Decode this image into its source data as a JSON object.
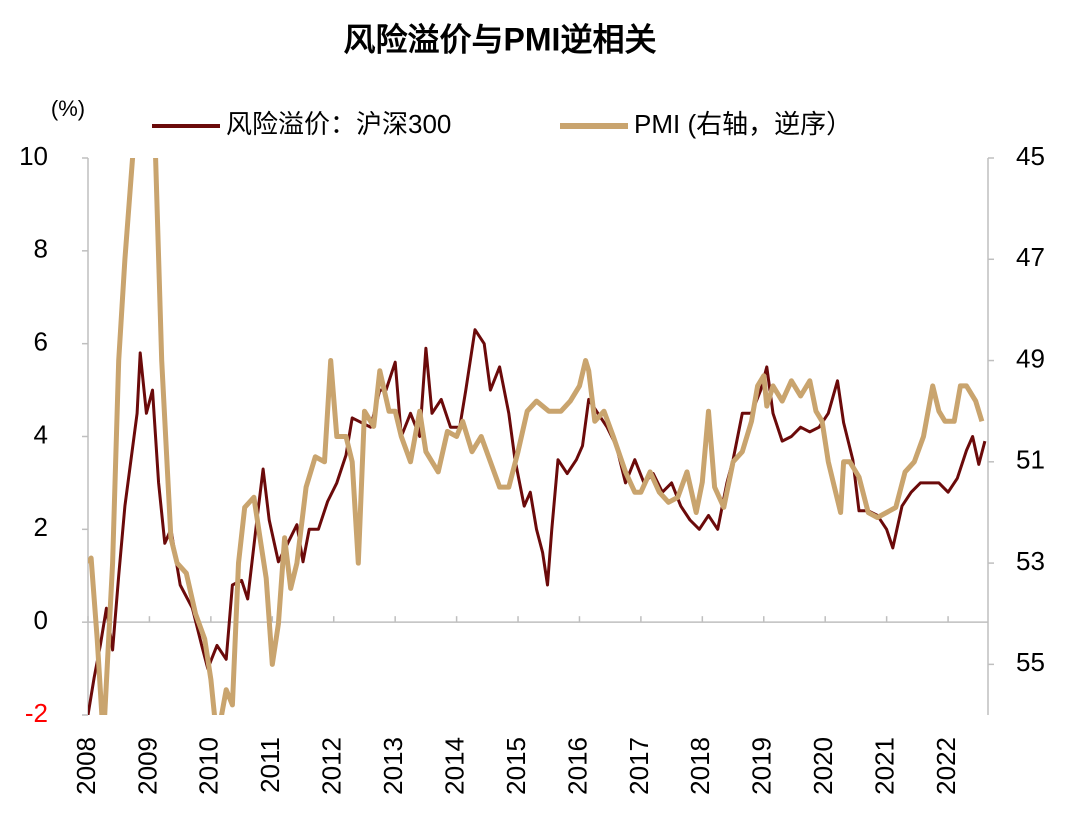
{
  "chart_data": {
    "type": "line",
    "title": "风险溢价与PMI逆相关",
    "y_label": "(%)",
    "xlim": [
      2008,
      2022.65
    ],
    "xticks": [
      2008,
      2009,
      2010,
      2011,
      2012,
      2013,
      2014,
      2015,
      2016,
      2017,
      2018,
      2019,
      2020,
      2021,
      2022
    ],
    "ylim": [
      -2,
      10
    ],
    "yticks": [
      -2,
      0,
      2,
      4,
      6,
      8,
      10
    ],
    "negative_tick_color": "#ff0000",
    "y2lim": [
      45,
      56
    ],
    "y2ticks": [
      45,
      47,
      49,
      51,
      53,
      55
    ],
    "y2_inverted": true,
    "series": [
      {
        "name": "风险溢价：沪深300",
        "color": "#6b0a0a",
        "axis": "y",
        "x": [
          2008.0,
          2008.1,
          2008.2,
          2008.3,
          2008.4,
          2008.5,
          2008.6,
          2008.7,
          2008.8,
          2008.85,
          2008.95,
          2009.05,
          2009.15,
          2009.25,
          2009.35,
          2009.5,
          2009.7,
          2009.85,
          2009.95,
          2010.1,
          2010.25,
          2010.35,
          2010.5,
          2010.6,
          2010.75,
          2010.85,
          2010.95,
          2011.1,
          2011.25,
          2011.4,
          2011.5,
          2011.6,
          2011.75,
          2011.9,
          2012.05,
          2012.2,
          2012.3,
          2012.45,
          2012.6,
          2012.75,
          2012.85,
          2013.0,
          2013.1,
          2013.25,
          2013.4,
          2013.5,
          2013.6,
          2013.75,
          2013.9,
          2014.05,
          2014.15,
          2014.3,
          2014.45,
          2014.55,
          2014.7,
          2014.85,
          2014.95,
          2015.1,
          2015.2,
          2015.3,
          2015.4,
          2015.48,
          2015.55,
          2015.65,
          2015.8,
          2015.95,
          2016.05,
          2016.15,
          2016.3,
          2016.45,
          2016.6,
          2016.75,
          2016.9,
          2017.05,
          2017.2,
          2017.35,
          2017.5,
          2017.65,
          2017.8,
          2017.95,
          2018.1,
          2018.25,
          2018.4,
          2018.5,
          2018.65,
          2018.8,
          2018.95,
          2019.05,
          2019.15,
          2019.3,
          2019.45,
          2019.6,
          2019.75,
          2019.9,
          2020.05,
          2020.2,
          2020.3,
          2020.45,
          2020.55,
          2020.7,
          2020.85,
          2021.0,
          2021.1,
          2021.25,
          2021.4,
          2021.55,
          2021.7,
          2021.85,
          2022.0,
          2022.15,
          2022.3,
          2022.4,
          2022.5,
          2022.6
        ],
        "values": [
          -2.0,
          -1.2,
          -0.5,
          0.3,
          -0.6,
          1.0,
          2.5,
          3.5,
          4.5,
          5.8,
          4.5,
          5.0,
          3.0,
          1.7,
          2.0,
          0.8,
          0.3,
          -0.5,
          -1.0,
          -0.5,
          -0.8,
          0.8,
          0.9,
          0.5,
          2.2,
          3.3,
          2.2,
          1.3,
          1.7,
          2.1,
          1.3,
          2.0,
          2.0,
          2.6,
          3.0,
          3.6,
          4.4,
          4.3,
          4.2,
          5.0,
          5.0,
          5.6,
          4.0,
          4.5,
          4.0,
          5.9,
          4.5,
          4.8,
          4.2,
          4.2,
          5.0,
          6.3,
          6.0,
          5.0,
          5.5,
          4.5,
          3.5,
          2.5,
          2.8,
          2.0,
          1.5,
          0.8,
          2.0,
          3.5,
          3.2,
          3.5,
          3.8,
          4.8,
          4.5,
          4.2,
          3.8,
          3.0,
          3.5,
          3.0,
          3.2,
          2.8,
          3.0,
          2.5,
          2.2,
          2.0,
          2.3,
          2.0,
          3.0,
          3.5,
          4.5,
          4.5,
          5.0,
          5.5,
          4.5,
          3.9,
          4.0,
          4.2,
          4.1,
          4.2,
          4.5,
          5.2,
          4.3,
          3.5,
          2.4,
          2.4,
          2.3,
          2.0,
          1.6,
          2.5,
          2.8,
          3.0,
          3.0,
          3.0,
          2.8,
          3.1,
          3.7,
          4.0,
          3.4,
          3.9
        ]
      },
      {
        "name": "PMI (右轴，逆序）",
        "color": "#c9a46e",
        "axis": "y2",
        "x": [
          2008.0,
          2008.05,
          2008.15,
          2008.25,
          2008.4,
          2008.5,
          2008.6,
          2008.75,
          2008.85,
          2009.0,
          2009.1,
          2009.2,
          2009.35,
          2009.45,
          2009.6,
          2009.75,
          2009.9,
          2010.0,
          2010.1,
          2010.25,
          2010.35,
          2010.45,
          2010.55,
          2010.7,
          2010.8,
          2010.9,
          2011.0,
          2011.1,
          2011.2,
          2011.3,
          2011.4,
          2011.55,
          2011.7,
          2011.85,
          2011.95,
          2012.05,
          2012.2,
          2012.3,
          2012.4,
          2012.5,
          2012.65,
          2012.75,
          2012.9,
          2013.0,
          2013.1,
          2013.25,
          2013.4,
          2013.5,
          2013.7,
          2013.85,
          2014.0,
          2014.1,
          2014.25,
          2014.4,
          2014.55,
          2014.7,
          2014.85,
          2015.0,
          2015.15,
          2015.3,
          2015.5,
          2015.7,
          2015.85,
          2016.0,
          2016.1,
          2016.15,
          2016.25,
          2016.4,
          2016.55,
          2016.75,
          2016.9,
          2017.0,
          2017.15,
          2017.3,
          2017.45,
          2017.6,
          2017.75,
          2017.9,
          2018.0,
          2018.1,
          2018.2,
          2018.35,
          2018.5,
          2018.65,
          2018.8,
          2018.9,
          2019.0,
          2019.05,
          2019.15,
          2019.3,
          2019.45,
          2019.6,
          2019.75,
          2019.85,
          2019.95,
          2020.05,
          2020.15,
          2020.25,
          2020.3,
          2020.4,
          2020.55,
          2020.7,
          2020.85,
          2021.0,
          2021.15,
          2021.3,
          2021.45,
          2021.6,
          2021.75,
          2021.85,
          2021.95,
          2022.1,
          2022.2,
          2022.3,
          2022.45,
          2022.55
        ],
        "values": [
          53.0,
          52.9,
          54.5,
          56.5,
          53.0,
          49.0,
          47.0,
          44.6,
          38.8,
          41.2,
          45.0,
          49.0,
          52.5,
          53.0,
          53.2,
          54.0,
          54.5,
          55.3,
          56.5,
          55.5,
          55.8,
          53.0,
          51.9,
          51.7,
          52.5,
          53.3,
          55.0,
          54.2,
          52.5,
          53.5,
          53.0,
          51.5,
          50.9,
          51.0,
          49.0,
          50.5,
          50.5,
          51.0,
          53.0,
          50.0,
          50.3,
          49.2,
          50.0,
          50.0,
          50.5,
          51.0,
          50.0,
          50.8,
          51.2,
          50.4,
          50.5,
          50.2,
          50.8,
          50.5,
          51.0,
          51.5,
          51.5,
          50.8,
          50.0,
          49.8,
          50.0,
          50.0,
          49.8,
          49.5,
          49.0,
          49.2,
          50.2,
          50.0,
          50.5,
          51.2,
          51.6,
          51.6,
          51.2,
          51.6,
          51.8,
          51.7,
          51.2,
          52.0,
          51.4,
          50.0,
          51.5,
          51.9,
          51.0,
          50.8,
          50.2,
          49.5,
          49.3,
          49.9,
          49.5,
          49.8,
          49.4,
          49.7,
          49.4,
          50.0,
          50.2,
          51.0,
          51.5,
          52.0,
          51.0,
          51.0,
          51.3,
          52.0,
          52.1,
          52.0,
          51.9,
          51.2,
          51.0,
          50.5,
          49.5,
          50.0,
          50.2,
          50.2,
          49.5,
          49.5,
          49.8,
          50.2
        ]
      }
    ]
  }
}
